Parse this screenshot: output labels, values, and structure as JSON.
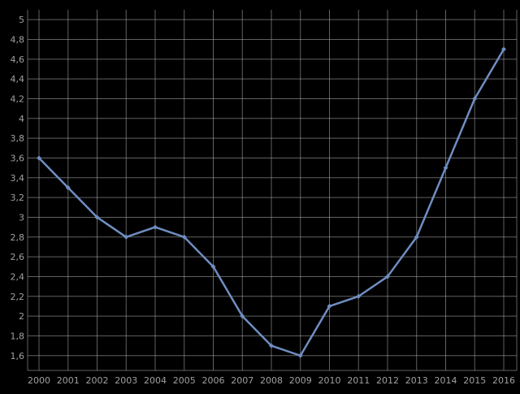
{
  "chart_data": {
    "type": "line",
    "title": "",
    "xlabel": "",
    "ylabel": "",
    "x": [
      "2000",
      "2001",
      "2002",
      "2003",
      "2004",
      "2005",
      "2006",
      "2007",
      "2008",
      "2009",
      "2010",
      "2011",
      "2012",
      "2013",
      "2014",
      "2015",
      "2016"
    ],
    "series": [
      {
        "values": [
          3.6,
          3.3,
          3.0,
          2.8,
          2.9,
          2.8,
          2.5,
          2.0,
          1.7,
          1.6,
          2.1,
          2.2,
          2.4,
          2.8,
          3.5,
          4.2,
          4.7
        ]
      }
    ],
    "ylim": [
      1.45,
      5.1
    ],
    "yticks": [
      1.6,
      1.8,
      2.0,
      2.2,
      2.4,
      2.6,
      2.8,
      3.0,
      3.2,
      3.4,
      3.6,
      3.8,
      4.0,
      4.2,
      4.4,
      4.6,
      4.8,
      5.0
    ],
    "ytick_labels": [
      "1,6",
      "1,8",
      "2",
      "2,2",
      "2,4",
      "2,6",
      "2,8",
      "3",
      "3,2",
      "3,4",
      "3,6",
      "3,8",
      "4",
      "4,2",
      "4,4",
      "4,6",
      "4,8",
      "5"
    ],
    "grid": true,
    "colors": {
      "background": "#000000",
      "grid": "#b0b0b0",
      "line": "#6f8ec2",
      "text": "#a0a0a0"
    }
  }
}
